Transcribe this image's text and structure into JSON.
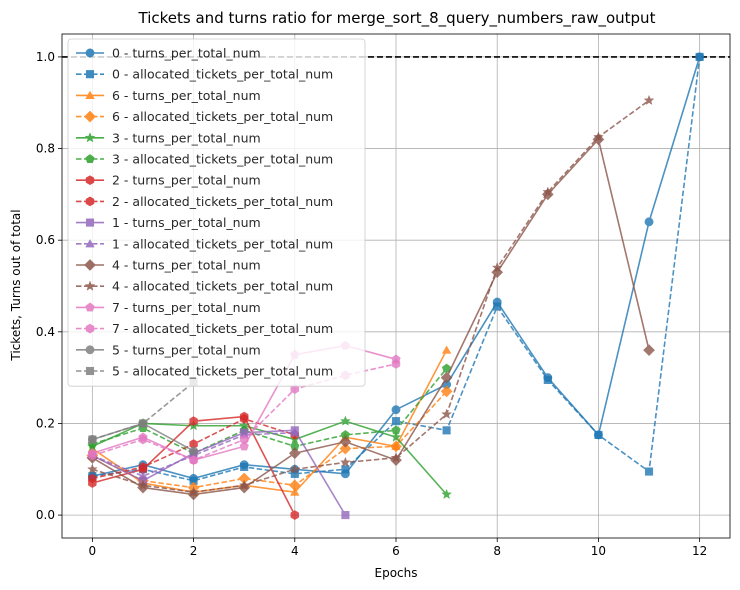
{
  "chart_data": {
    "type": "line",
    "title": "Tickets and turns ratio for merge_sort_8_query_numbers_raw_output",
    "xlabel": "Epochs",
    "ylabel": "Tickets, Turns out of total",
    "xlim": [
      -0.6,
      12.6
    ],
    "ylim": [
      -0.05,
      1.05
    ],
    "xticks": [
      "0",
      "2",
      "4",
      "6",
      "8",
      "10",
      "12"
    ],
    "yticks": [
      "0.0",
      "0.2",
      "0.4",
      "0.6",
      "0.8",
      "1.0"
    ],
    "grid": true,
    "legend_position": "upper-left",
    "reference_line": {
      "y": 1.0,
      "style": "dashed",
      "color": "#000000"
    },
    "series": [
      {
        "name": "0 - turns_per_total_num",
        "color": "#1f77b4",
        "dash": false,
        "marker": "circle",
        "x": [
          0,
          1,
          2,
          3,
          4,
          5,
          6,
          7,
          8,
          9,
          10,
          11,
          12
        ],
        "y": [
          0.085,
          0.11,
          0.08,
          0.11,
          0.1,
          0.09,
          0.23,
          0.285,
          0.465,
          0.3,
          0.175,
          0.64,
          1.0
        ]
      },
      {
        "name": "0 - allocated_tickets_per_total_num",
        "color": "#1f77b4",
        "dash": true,
        "marker": "square",
        "x": [
          0,
          1,
          2,
          3,
          4,
          5,
          6,
          7,
          8,
          9,
          10,
          11,
          12
        ],
        "y": [
          0.085,
          0.1,
          0.075,
          0.105,
          0.09,
          0.1,
          0.205,
          0.185,
          0.455,
          0.295,
          0.175,
          0.095,
          1.0
        ]
      },
      {
        "name": "6 - turns_per_total_num",
        "color": "#ff7f0e",
        "dash": false,
        "marker": "triangle",
        "x": [
          0,
          1,
          2,
          3,
          4,
          5,
          6,
          7
        ],
        "y": [
          0.145,
          0.07,
          0.05,
          0.065,
          0.05,
          0.17,
          0.15,
          0.36
        ]
      },
      {
        "name": "6 - allocated_tickets_per_total_num",
        "color": "#ff7f0e",
        "dash": true,
        "marker": "diamond",
        "x": [
          0,
          1,
          2,
          3,
          4,
          5,
          6,
          7
        ],
        "y": [
          0.13,
          0.075,
          0.06,
          0.08,
          0.065,
          0.145,
          0.15,
          0.27
        ]
      },
      {
        "name": "3 - turns_per_total_num",
        "color": "#2ca02c",
        "dash": false,
        "marker": "star",
        "x": [
          0,
          1,
          2,
          3,
          4,
          5,
          6,
          7
        ],
        "y": [
          0.15,
          0.2,
          0.195,
          0.195,
          0.165,
          0.205,
          0.17,
          0.045
        ]
      },
      {
        "name": "3 - allocated_tickets_per_total_num",
        "color": "#2ca02c",
        "dash": true,
        "marker": "pentagon",
        "x": [
          0,
          1,
          2,
          3,
          4,
          5,
          6,
          7
        ],
        "y": [
          0.155,
          0.19,
          0.135,
          0.185,
          0.15,
          0.175,
          0.185,
          0.32
        ]
      },
      {
        "name": "2 - turns_per_total_num",
        "color": "#d62728",
        "dash": false,
        "marker": "hexagon",
        "x": [
          0,
          1,
          2,
          3,
          4
        ],
        "y": [
          0.07,
          0.1,
          0.205,
          0.215,
          0.0
        ]
      },
      {
        "name": "2 - allocated_tickets_per_total_num",
        "color": "#d62728",
        "dash": true,
        "marker": "hexagon",
        "x": [
          0,
          1,
          2,
          3,
          4
        ],
        "y": [
          0.08,
          0.105,
          0.155,
          0.21,
          0.175
        ]
      },
      {
        "name": "1 - turns_per_total_num",
        "color": "#9467bd",
        "dash": false,
        "marker": "square",
        "x": [
          0,
          1,
          2,
          3,
          4,
          5
        ],
        "y": [
          0.13,
          0.075,
          0.135,
          0.18,
          0.185,
          0.0
        ]
      },
      {
        "name": "1 - allocated_tickets_per_total_num",
        "color": "#9467bd",
        "dash": true,
        "marker": "triangle",
        "x": [
          0,
          1,
          2,
          3,
          4
        ],
        "y": [
          0.13,
          0.085,
          0.13,
          0.175,
          0.18
        ]
      },
      {
        "name": "4 - turns_per_total_num",
        "color": "#8c564b",
        "dash": false,
        "marker": "diamond",
        "x": [
          0,
          1,
          2,
          3,
          4,
          5,
          6,
          7,
          8,
          9,
          10,
          11
        ],
        "y": [
          0.125,
          0.06,
          0.045,
          0.06,
          0.135,
          0.16,
          0.12,
          0.3,
          0.53,
          0.7,
          0.82,
          0.36
        ]
      },
      {
        "name": "4 - allocated_tickets_per_total_num",
        "color": "#8c564b",
        "dash": true,
        "marker": "star",
        "x": [
          0,
          1,
          2,
          3,
          4,
          5,
          6,
          7,
          8,
          9,
          10,
          11
        ],
        "y": [
          0.1,
          0.065,
          0.05,
          0.065,
          0.1,
          0.115,
          0.125,
          0.22,
          0.54,
          0.705,
          0.825,
          0.905
        ]
      },
      {
        "name": "7 - turns_per_total_num",
        "color": "#e377c2",
        "dash": false,
        "marker": "pentagon",
        "x": [
          0,
          1,
          2,
          3,
          4,
          5,
          6
        ],
        "y": [
          0.135,
          0.17,
          0.12,
          0.15,
          0.35,
          0.37,
          0.34
        ]
      },
      {
        "name": "7 - allocated_tickets_per_total_num",
        "color": "#e377c2",
        "dash": true,
        "marker": "hexagon",
        "x": [
          0,
          1,
          2,
          3,
          4,
          5,
          6
        ],
        "y": [
          0.13,
          0.165,
          0.12,
          0.165,
          0.275,
          0.305,
          0.33
        ]
      },
      {
        "name": "5 - turns_per_total_num",
        "color": "#7f7f7f",
        "dash": false,
        "marker": "circle",
        "x": [
          0,
          1,
          2
        ],
        "y": [
          0.165,
          0.2,
          0.14
        ]
      },
      {
        "name": "5 - allocated_tickets_per_total_num",
        "color": "#7f7f7f",
        "dash": true,
        "marker": "square",
        "x": [
          0,
          1,
          2
        ],
        "y": [
          0.165,
          0.2,
          0.29
        ]
      }
    ]
  }
}
